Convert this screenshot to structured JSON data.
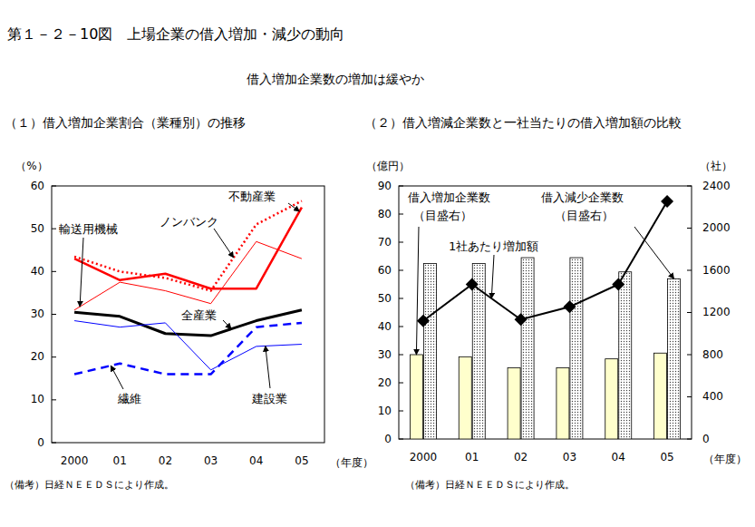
{
  "title": "第１－２－10図　上場企業の借入増加・減少の動向",
  "subtitle": "借入増加企業数の増加は緩やか",
  "chart_data": [
    {
      "type": "line",
      "title": "（１）借入増加企業割合（業種別）の推移",
      "categories": [
        "2000",
        "01",
        "02",
        "03",
        "04",
        "05"
      ],
      "ylabel": "（%）",
      "xlabel": "（年度）",
      "note": "（備考）日経ＮＥＥＤＳにより作成。",
      "ylim": [
        0,
        60
      ],
      "yticks": [
        0,
        10,
        20,
        30,
        40,
        50,
        60
      ],
      "grid": false,
      "series": [
        {
          "name": "不動産業",
          "color": "#ff0000",
          "line_style": "solid",
          "values": [
            43,
            38,
            39.5,
            36,
            36,
            55
          ]
        },
        {
          "name": "ノンバンク",
          "color": "#ff0000",
          "line_style": "dotted",
          "values": [
            43.5,
            40,
            38.5,
            35.5,
            51,
            56.5
          ]
        },
        {
          "name": "輸送用機械",
          "color": "#ff0000",
          "line_style": "solid",
          "values": [
            31,
            37.5,
            35.5,
            32.5,
            47,
            43
          ]
        },
        {
          "name": "全産業",
          "color": "#000000",
          "line_style": "solid",
          "values": [
            30.5,
            29.5,
            25.5,
            25,
            28.5,
            31
          ]
        },
        {
          "name": "建設業",
          "color": "#0000ff",
          "line_style": "solid",
          "values": [
            28.5,
            27,
            28,
            17,
            22.5,
            23
          ]
        },
        {
          "name": "繊維",
          "color": "#0000ff",
          "line_style": "dashed",
          "values": [
            16,
            18.5,
            16,
            16,
            27,
            28
          ]
        }
      ]
    },
    {
      "type": "bar",
      "title": "（２）借入増減企業数と一社当たりの借入増加額の比較",
      "categories": [
        "2000",
        "01",
        "02",
        "03",
        "04",
        "05"
      ],
      "ylabel": "（億円）",
      "y2label": "（社）",
      "xlabel": "（年度）",
      "note": "（備考）日経ＮＥＥＤＳにより作成。",
      "ylim": [
        0,
        90
      ],
      "yticks": [
        0,
        10,
        20,
        30,
        40,
        50,
        60,
        70,
        80,
        90
      ],
      "y2lim": [
        0,
        2400
      ],
      "y2ticks": [
        0,
        400,
        800,
        1200,
        1600,
        2000,
        2400
      ],
      "grid": false,
      "annotations": [
        "（目盛右）",
        "（目盛右）"
      ],
      "series": [
        {
          "name": "借入増加企業数",
          "type": "bar",
          "axis": "y2",
          "color": "#ffffcc",
          "values": [
            800,
            780,
            675,
            675,
            760,
            815
          ]
        },
        {
          "name": "借入減少企業数",
          "type": "bar",
          "axis": "y2",
          "color": "#404040",
          "values": [
            1665,
            1665,
            1720,
            1720,
            1585,
            1520
          ]
        },
        {
          "name": "1社あたり増加額",
          "type": "line",
          "color": "#000000",
          "marker": "diamond",
          "values": [
            42,
            55,
            42.5,
            47,
            55,
            84.5
          ]
        }
      ]
    }
  ]
}
